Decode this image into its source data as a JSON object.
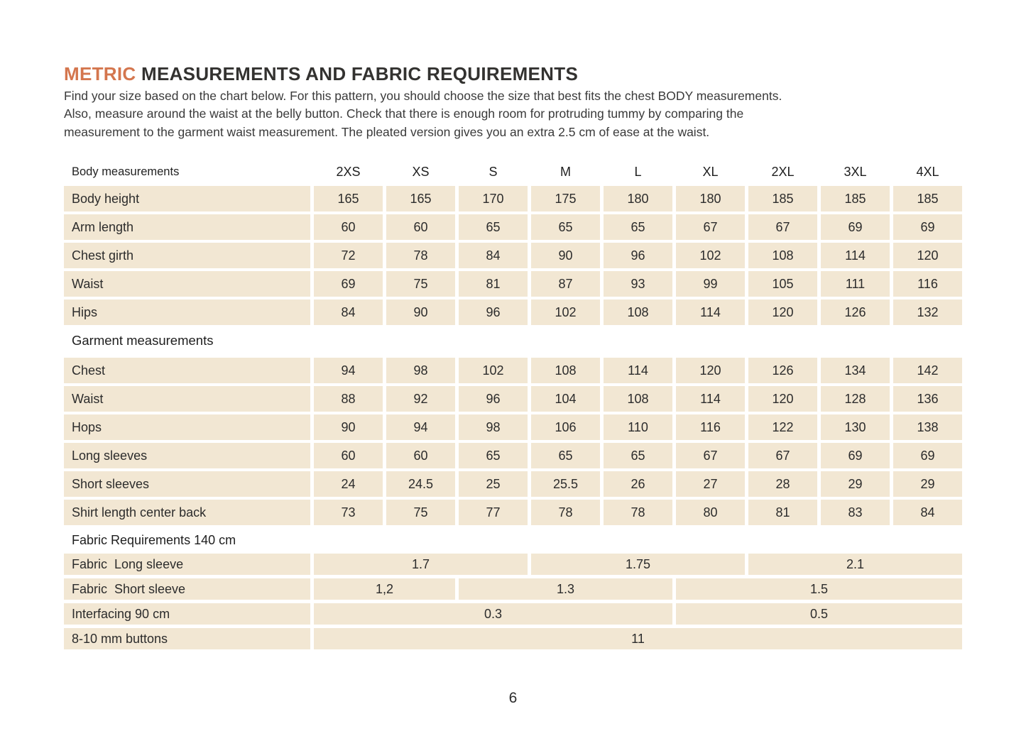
{
  "page": {
    "page_number": "6"
  },
  "colors": {
    "accent_orange": "#d4764e",
    "cell_beige": "#f2e7d3",
    "text_dark": "#2f2f2f",
    "background": "#ffffff"
  },
  "title": {
    "highlight": "METRIC",
    "rest": "MEASUREMENTS AND FABRIC REQUIREMENTS"
  },
  "intro": {
    "lines": [
      "Find your size based on the chart below. For this pattern, you should choose the size that best fits the chest BODY measurements.",
      "Also, measure around the waist at the belly button. Check that there is enough room for protruding tummy by comparing the",
      "measurement to the garment waist measurement. The pleated version gives you an extra 2.5 cm of ease at the waist."
    ]
  },
  "table": {
    "header_label": "Body measurements",
    "sizes": [
      "2XS",
      "XS",
      "S",
      "M",
      "L",
      "XL",
      "2XL",
      "3XL",
      "4XL"
    ],
    "sections": [
      {
        "heading": null,
        "rows": [
          {
            "label": "Body height",
            "cells": [
              {
                "value": "165",
                "span": 1
              },
              {
                "value": "165",
                "span": 1
              },
              {
                "value": "170",
                "span": 1
              },
              {
                "value": "175",
                "span": 1
              },
              {
                "value": "180",
                "span": 1
              },
              {
                "value": "180",
                "span": 1
              },
              {
                "value": "185",
                "span": 1
              },
              {
                "value": "185",
                "span": 1
              },
              {
                "value": "185",
                "span": 1
              }
            ]
          },
          {
            "label": "Arm length",
            "cells": [
              {
                "value": "60",
                "span": 1
              },
              {
                "value": "60",
                "span": 1
              },
              {
                "value": "65",
                "span": 1
              },
              {
                "value": "65",
                "span": 1
              },
              {
                "value": "65",
                "span": 1
              },
              {
                "value": "67",
                "span": 1
              },
              {
                "value": "67",
                "span": 1
              },
              {
                "value": "69",
                "span": 1
              },
              {
                "value": "69",
                "span": 1
              }
            ]
          },
          {
            "label": "Chest girth",
            "cells": [
              {
                "value": "72",
                "span": 1
              },
              {
                "value": "78",
                "span": 1
              },
              {
                "value": "84",
                "span": 1
              },
              {
                "value": "90",
                "span": 1
              },
              {
                "value": "96",
                "span": 1
              },
              {
                "value": "102",
                "span": 1
              },
              {
                "value": "108",
                "span": 1
              },
              {
                "value": "114",
                "span": 1
              },
              {
                "value": "120",
                "span": 1
              }
            ]
          },
          {
            "label": "Waist",
            "cells": [
              {
                "value": "69",
                "span": 1
              },
              {
                "value": "75",
                "span": 1
              },
              {
                "value": "81",
                "span": 1
              },
              {
                "value": "87",
                "span": 1
              },
              {
                "value": "93",
                "span": 1
              },
              {
                "value": "99",
                "span": 1
              },
              {
                "value": "105",
                "span": 1
              },
              {
                "value": "111",
                "span": 1
              },
              {
                "value": "116",
                "span": 1
              }
            ]
          },
          {
            "label": "Hips",
            "cells": [
              {
                "value": "84",
                "span": 1
              },
              {
                "value": "90",
                "span": 1
              },
              {
                "value": "96",
                "span": 1
              },
              {
                "value": "102",
                "span": 1
              },
              {
                "value": "108",
                "span": 1
              },
              {
                "value": "114",
                "span": 1
              },
              {
                "value": "120",
                "span": 1
              },
              {
                "value": "126",
                "span": 1
              },
              {
                "value": "132",
                "span": 1
              }
            ]
          }
        ]
      },
      {
        "heading": "Garment measurements",
        "rows": [
          {
            "label": "Chest",
            "cells": [
              {
                "value": "94",
                "span": 1
              },
              {
                "value": "98",
                "span": 1
              },
              {
                "value": "102",
                "span": 1
              },
              {
                "value": "108",
                "span": 1
              },
              {
                "value": "114",
                "span": 1
              },
              {
                "value": "120",
                "span": 1
              },
              {
                "value": "126",
                "span": 1
              },
              {
                "value": "134",
                "span": 1
              },
              {
                "value": "142",
                "span": 1
              }
            ]
          },
          {
            "label": "Waist",
            "cells": [
              {
                "value": "88",
                "span": 1
              },
              {
                "value": "92",
                "span": 1
              },
              {
                "value": "96",
                "span": 1
              },
              {
                "value": "104",
                "span": 1
              },
              {
                "value": "108",
                "span": 1
              },
              {
                "value": "114",
                "span": 1
              },
              {
                "value": "120",
                "span": 1
              },
              {
                "value": "128",
                "span": 1
              },
              {
                "value": "136",
                "span": 1
              }
            ]
          },
          {
            "label": "Hops",
            "cells": [
              {
                "value": "90",
                "span": 1
              },
              {
                "value": "94",
                "span": 1
              },
              {
                "value": "98",
                "span": 1
              },
              {
                "value": "106",
                "span": 1
              },
              {
                "value": "110",
                "span": 1
              },
              {
                "value": "116",
                "span": 1
              },
              {
                "value": "122",
                "span": 1
              },
              {
                "value": "130",
                "span": 1
              },
              {
                "value": "138",
                "span": 1
              }
            ]
          },
          {
            "label": "Long sleeves",
            "cells": [
              {
                "value": "60",
                "span": 1
              },
              {
                "value": "60",
                "span": 1
              },
              {
                "value": "65",
                "span": 1
              },
              {
                "value": "65",
                "span": 1
              },
              {
                "value": "65",
                "span": 1
              },
              {
                "value": "67",
                "span": 1
              },
              {
                "value": "67",
                "span": 1
              },
              {
                "value": "69",
                "span": 1
              },
              {
                "value": "69",
                "span": 1
              }
            ]
          },
          {
            "label": "Short sleeves",
            "cells": [
              {
                "value": "24",
                "span": 1
              },
              {
                "value": "24.5",
                "span": 1
              },
              {
                "value": "25",
                "span": 1
              },
              {
                "value": "25.5",
                "span": 1
              },
              {
                "value": "26",
                "span": 1
              },
              {
                "value": "27",
                "span": 1
              },
              {
                "value": "28",
                "span": 1
              },
              {
                "value": "29",
                "span": 1
              },
              {
                "value": "29",
                "span": 1
              }
            ]
          },
          {
            "label": "Shirt length center back",
            "cells": [
              {
                "value": "73",
                "span": 1
              },
              {
                "value": "75",
                "span": 1
              },
              {
                "value": "77",
                "span": 1
              },
              {
                "value": "78",
                "span": 1
              },
              {
                "value": "78",
                "span": 1
              },
              {
                "value": "80",
                "span": 1
              },
              {
                "value": "81",
                "span": 1
              },
              {
                "value": "83",
                "span": 1
              },
              {
                "value": "84",
                "span": 1
              }
            ]
          }
        ]
      },
      {
        "heading": "Fabric Requirements 140 cm",
        "rows": [
          {
            "label": "Fabric  Long sleeve",
            "cells": [
              {
                "value": "1.7",
                "span": 3
              },
              {
                "value": "1.75",
                "span": 3
              },
              {
                "value": "2.1",
                "span": 3
              }
            ]
          },
          {
            "label": "Fabric  Short sleeve",
            "cells": [
              {
                "value": "1,2",
                "span": 2
              },
              {
                "value": "1.3",
                "span": 3
              },
              {
                "value": "1.5",
                "span": 4
              }
            ]
          },
          {
            "label": "Interfacing 90 cm",
            "cells": [
              {
                "value": "0.3",
                "span": 5
              },
              {
                "value": "0.5",
                "span": 4
              }
            ]
          },
          {
            "label": "8-10 mm buttons",
            "cells": [
              {
                "value": "11",
                "span": 9
              }
            ]
          }
        ]
      }
    ]
  }
}
